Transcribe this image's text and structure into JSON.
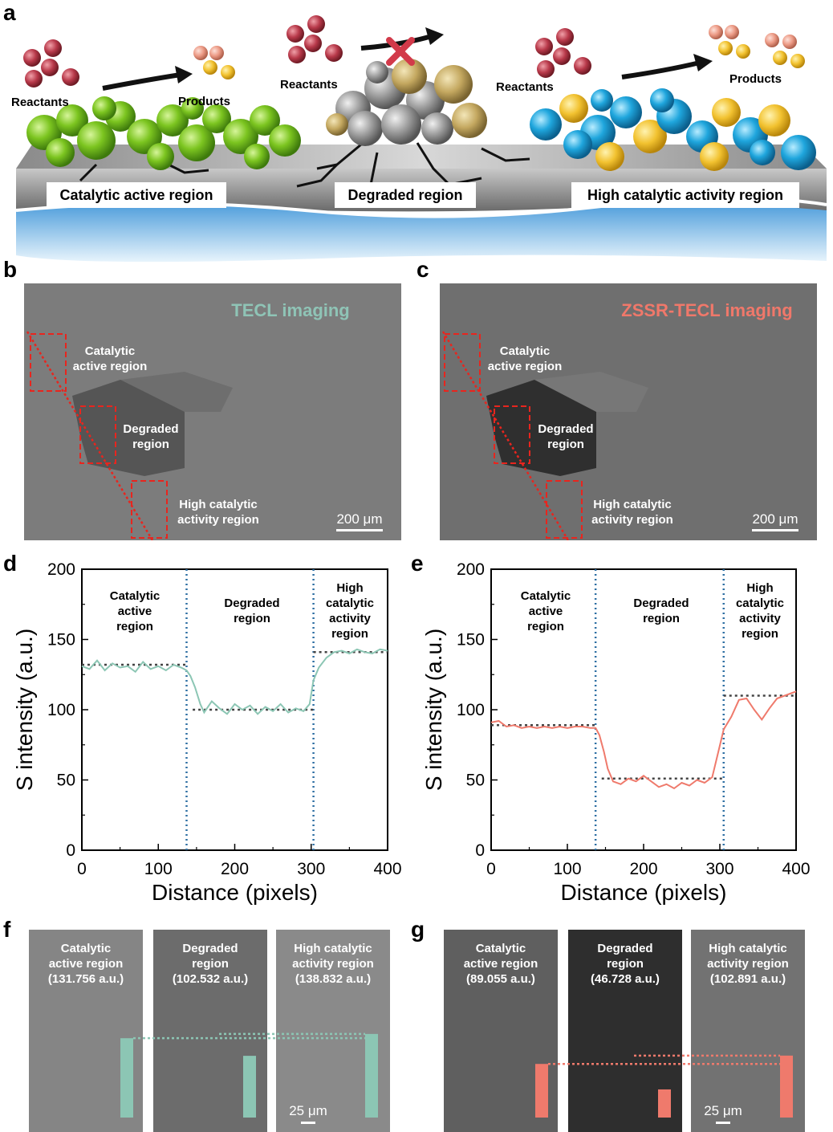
{
  "panel_letters": [
    "a",
    "b",
    "c",
    "d",
    "e",
    "f",
    "g"
  ],
  "schematic": {
    "reactants_label": "Reactants",
    "products_label": "Products",
    "regions": [
      "Catalytic active region",
      "Degraded region",
      "High catalytic activity region"
    ],
    "colors": {
      "active": "#7cc520",
      "degraded": "#9a9a9a",
      "high": "#1fa6dd",
      "product": "#f2c230",
      "reactant": "#b8394a"
    }
  },
  "images": {
    "b": {
      "title": "TECL imaging",
      "title_color": "#8fc4b6",
      "scale": "200 μm",
      "labels": [
        [
          "Catalytic",
          "active region"
        ],
        [
          "Degraded",
          "region"
        ],
        [
          "High catalytic",
          "activity region"
        ]
      ]
    },
    "c": {
      "title": "ZSSR-TECL imaging",
      "title_color": "#f0786a",
      "scale": "200 μm",
      "labels": [
        [
          "Catalytic",
          "active region"
        ],
        [
          "Degraded",
          "region"
        ],
        [
          "High catalytic",
          "activity region"
        ]
      ]
    }
  },
  "chart_data": [
    {
      "type": "line",
      "panel": "d",
      "xlabel": "Distance (pixels)",
      "ylabel": "S intensity (a.u.)",
      "xlim": [
        0,
        400
      ],
      "ylim": [
        0,
        200
      ],
      "xticks": [
        0,
        100,
        200,
        300,
        400
      ],
      "yticks": [
        0,
        50,
        100,
        150,
        200
      ],
      "color": "#8cc6b4",
      "boundaries": [
        137,
        303
      ],
      "levels": [
        {
          "y": 132,
          "from": 0,
          "to": 137
        },
        {
          "y": 100,
          "from": 145,
          "to": 303
        },
        {
          "y": 141,
          "from": 303,
          "to": 400
        }
      ],
      "regions": [
        [
          "Catalytic",
          "active",
          "region"
        ],
        [
          "Degraded",
          "region"
        ],
        [
          "High",
          "catalytic",
          "activity",
          "region"
        ]
      ],
      "x": [
        0,
        10,
        20,
        30,
        40,
        50,
        60,
        70,
        80,
        90,
        100,
        110,
        120,
        130,
        137,
        142,
        148,
        155,
        160,
        170,
        180,
        190,
        200,
        210,
        220,
        230,
        240,
        250,
        260,
        270,
        280,
        290,
        298,
        303,
        310,
        320,
        330,
        340,
        350,
        360,
        370,
        380,
        390,
        400
      ],
      "y": [
        131,
        129,
        135,
        128,
        133,
        130,
        131,
        127,
        134,
        129,
        131,
        128,
        132,
        130,
        128,
        124,
        116,
        104,
        98,
        106,
        101,
        97,
        104,
        100,
        103,
        97,
        102,
        99,
        104,
        98,
        101,
        99,
        104,
        121,
        130,
        137,
        141,
        142,
        140,
        143,
        141,
        140,
        143,
        142
      ]
    },
    {
      "type": "line",
      "panel": "e",
      "xlabel": "Distance (pixels)",
      "ylabel": "S intensity (a.u.)",
      "xlim": [
        0,
        400
      ],
      "ylim": [
        0,
        200
      ],
      "xticks": [
        0,
        100,
        200,
        300,
        400
      ],
      "yticks": [
        0,
        50,
        100,
        150,
        200
      ],
      "color": "#ef7a6c",
      "boundaries": [
        137,
        305
      ],
      "levels": [
        {
          "y": 89,
          "from": 0,
          "to": 137
        },
        {
          "y": 51,
          "from": 145,
          "to": 305
        },
        {
          "y": 110,
          "from": 305,
          "to": 400
        }
      ],
      "regions": [
        [
          "Catalytic",
          "active",
          "region"
        ],
        [
          "Degraded",
          "region"
        ],
        [
          "High",
          "catalytic",
          "activity",
          "region"
        ]
      ],
      "x": [
        0,
        10,
        20,
        30,
        40,
        50,
        60,
        70,
        80,
        90,
        100,
        110,
        120,
        130,
        137,
        142,
        148,
        153,
        160,
        170,
        180,
        190,
        200,
        210,
        220,
        230,
        240,
        250,
        260,
        270,
        280,
        290,
        298,
        305,
        315,
        325,
        335,
        345,
        355,
        365,
        375,
        385,
        395,
        400
      ],
      "y": [
        91,
        92,
        88,
        89,
        87,
        88,
        87,
        88,
        87,
        88,
        87,
        88,
        88,
        87,
        87,
        82,
        70,
        58,
        49,
        47,
        51,
        49,
        53,
        49,
        45,
        47,
        44,
        48,
        46,
        50,
        48,
        52,
        70,
        86,
        95,
        107,
        108,
        100,
        93,
        101,
        108,
        110,
        112,
        113
      ]
    },
    {
      "type": "bar",
      "panel": "f",
      "categories": [
        "Catalytic active region",
        "Degraded region",
        "High catalytic activity region"
      ],
      "values": [
        131.756,
        102.532,
        138.832
      ],
      "value_labels": [
        "(131.756 a.u.)",
        "(102.532 a.u.)",
        "(138.832 a.u.)"
      ],
      "labels": [
        [
          "Catalytic",
          "active region"
        ],
        [
          "Degraded",
          "region"
        ],
        [
          "High catalytic",
          "activity region"
        ]
      ],
      "color": "#8cc6b4",
      "scale": "25 μm"
    },
    {
      "type": "bar",
      "panel": "g",
      "categories": [
        "Catalytic active region",
        "Degraded region",
        "High catalytic activity region"
      ],
      "values": [
        89.055,
        46.728,
        102.891
      ],
      "value_labels": [
        "(89.055 a.u.)",
        "(46.728 a.u.)",
        "(102.891 a.u.)"
      ],
      "labels": [
        [
          "Catalytic",
          "active region"
        ],
        [
          "Degraded",
          "region"
        ],
        [
          "High catalytic",
          "activity region"
        ]
      ],
      "color": "#ef7a6c",
      "scale": "25 μm"
    }
  ]
}
